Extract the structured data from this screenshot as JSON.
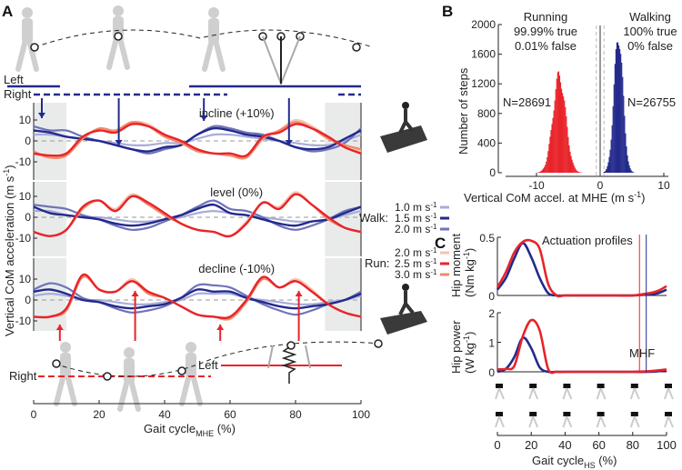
{
  "panels": {
    "a": "A",
    "b": "B",
    "c": "C"
  },
  "colors": {
    "walk": [
      "#a9acd8",
      "#232a8c",
      "#6f73b9"
    ],
    "run": [
      "#f6c3ad",
      "#e8242a",
      "#f08a6c"
    ],
    "stance_shade": "#e9ebea"
  },
  "panel_a": {
    "top_left_label": "Left",
    "top_right_label": "Right",
    "bottom_left_label": "Left",
    "bottom_right_label": "Right",
    "ylabel": "Vertical CoM acceleration (m s",
    "ylabel_sup": "-1",
    "ylabel_end": ")",
    "xlabel": "Gait cycle",
    "xlabel_sub": "MHE",
    "xlabel_end": " (%)",
    "xticks": [
      "0",
      "20",
      "40",
      "60",
      "80",
      "100"
    ],
    "yticks": [
      "10",
      "0",
      "-10"
    ],
    "legend": {
      "walk_label": "Walk:",
      "run_label": "Run:",
      "walk_speeds": [
        "1.0 m s",
        "1.5 m s",
        "2.0 m s"
      ],
      "run_speeds": [
        "2.0 m s",
        "2.5 m s",
        "3.0 m s"
      ],
      "unit_sup": "-1"
    }
  },
  "chart_data": [
    {
      "type": "line",
      "panel": "A",
      "x": [
        0,
        5,
        10,
        15,
        20,
        25,
        30,
        35,
        40,
        45,
        50,
        55,
        60,
        65,
        70,
        75,
        80,
        85,
        90,
        95,
        100
      ],
      "ylim": [
        -15,
        15
      ],
      "xlim": [
        0,
        100
      ],
      "subplots": [
        {
          "title": "incline (+10%)",
          "walk": [
            [
              3,
              3,
              2,
              1,
              0,
              -1,
              -2,
              -2,
              -1,
              -1,
              1,
              3,
              3,
              2,
              1,
              0,
              -1,
              -2,
              -2,
              0,
              3
            ],
            [
              5,
              4,
              2,
              1,
              0,
              -2,
              -4,
              -5,
              -3,
              -2,
              3,
              6,
              5,
              3,
              2,
              0,
              -3,
              -4,
              -3,
              1,
              5
            ],
            [
              7,
              5,
              5,
              2,
              0,
              -2,
              -4,
              -6,
              -4,
              -2,
              3,
              7,
              6,
              4,
              3,
              0,
              -3,
              -5,
              -4,
              -1,
              6
            ]
          ],
          "run": [
            [
              -6,
              -8,
              -6,
              2,
              5,
              5,
              9,
              8,
              3,
              -1,
              -4,
              -6,
              -6,
              -7,
              2,
              5,
              10,
              7,
              2,
              -3,
              -5
            ],
            [
              -6,
              -7,
              -6,
              2,
              5,
              4,
              8,
              7,
              3,
              0,
              -4,
              -6,
              -6,
              -7,
              2,
              4,
              8,
              6,
              2,
              -3,
              -6
            ],
            [
              -5,
              -8,
              -7,
              1,
              6,
              5,
              9,
              7,
              2,
              -1,
              -5,
              -6,
              -7,
              -8,
              1,
              5,
              9,
              6,
              1,
              -2,
              -4
            ]
          ]
        },
        {
          "title": "level (0%)",
          "walk": [
            [
              3,
              3,
              1,
              0,
              0,
              -1,
              -2,
              -2,
              -1,
              0,
              2,
              3,
              2,
              1,
              0,
              -1,
              -2,
              -2,
              -1,
              1,
              3
            ],
            [
              5,
              2,
              1,
              0,
              -1,
              -3,
              -4,
              -3,
              -1,
              1,
              4,
              6,
              2,
              1,
              -1,
              -3,
              -4,
              -2,
              -1,
              2,
              5
            ],
            [
              6,
              5,
              4,
              1,
              -1,
              -4,
              -6,
              -5,
              -2,
              1,
              5,
              8,
              4,
              3,
              0,
              -4,
              -6,
              -4,
              -1,
              3,
              5
            ]
          ],
          "run": [
            [
              -7,
              -9,
              -6,
              5,
              8,
              4,
              11,
              7,
              2,
              -3,
              -6,
              -7,
              -9,
              -2,
              7,
              5,
              12,
              6,
              0,
              -5,
              -7
            ],
            [
              -7,
              -9,
              -6,
              5,
              8,
              3,
              10,
              7,
              2,
              -3,
              -6,
              -7,
              -9,
              -3,
              7,
              4,
              11,
              6,
              0,
              -5,
              -7
            ],
            [
              -7,
              -9,
              -6,
              4,
              8,
              3,
              10,
              6,
              1,
              -3,
              -6,
              -7,
              -9,
              -3,
              7,
              4,
              11,
              6,
              -1,
              -5,
              -7
            ]
          ]
        },
        {
          "title": "decline (-10%)",
          "walk": [
            [
              2,
              3,
              2,
              0,
              0,
              -1,
              -2,
              -2,
              -1,
              0,
              3,
              3,
              3,
              1,
              0,
              -1,
              -2,
              -2,
              -1,
              0,
              2
            ],
            [
              4,
              5,
              3,
              0,
              -1,
              -3,
              -4,
              -3,
              -2,
              1,
              5,
              4,
              4,
              1,
              -1,
              -3,
              -4,
              -3,
              -2,
              0,
              3
            ],
            [
              5,
              8,
              6,
              1,
              -1,
              -4,
              -6,
              -5,
              -3,
              1,
              7,
              7,
              6,
              2,
              -2,
              -5,
              -7,
              -5,
              -2,
              0,
              4
            ]
          ],
          "run": [
            [
              -8,
              -8,
              -4,
              12,
              5,
              4,
              10,
              4,
              1,
              -3,
              -7,
              -8,
              -8,
              0,
              11,
              6,
              10,
              5,
              -2,
              -6,
              -8
            ],
            [
              -8,
              -8,
              -4,
              12,
              5,
              4,
              9,
              4,
              1,
              -3,
              -7,
              -8,
              -8,
              0,
              11,
              6,
              9,
              4,
              -2,
              -6,
              -8
            ],
            [
              -8,
              -8,
              -5,
              11,
              5,
              4,
              9,
              3,
              1,
              -3,
              -7,
              -8,
              -9,
              -1,
              10,
              6,
              9,
              4,
              -2,
              -6,
              -8
            ]
          ]
        }
      ]
    },
    {
      "type": "histogram",
      "panel": "B",
      "xlabel": "Vertical CoM accel. at MHE (m s",
      "xlabel_sup": "-1",
      "xlabel_end": ")",
      "ylabel": "Number of steps",
      "xlim": [
        -15,
        11
      ],
      "ylim": [
        0,
        2000
      ],
      "xticks": [
        "-10",
        "0",
        "10"
      ],
      "yticks": [
        "0",
        "400",
        "800",
        "1200",
        "1600",
        "2000"
      ],
      "series": [
        {
          "name": "Running",
          "line1": "99.99% true",
          "line2": "0.01% false",
          "n_label": "N=28691",
          "center": -6.5,
          "peak": 1400,
          "sd": 1.0
        },
        {
          "name": "Walking",
          "line1": "100% true",
          "line2": "0% false",
          "n_label": "N=26755",
          "center": 2.8,
          "peak": 2000,
          "sd": 0.7
        }
      ]
    },
    {
      "type": "line",
      "panel": "C",
      "annotation": "Actuation profiles",
      "marker_label": "MHF",
      "marker_x": {
        "run": 84,
        "walk": 88
      },
      "xlabel": "Gait cycle",
      "xlabel_sub": "HS",
      "xlabel_end": " (%)",
      "xticks": [
        "0",
        "20",
        "40",
        "60",
        "80",
        "100"
      ],
      "x": [
        0,
        5,
        10,
        15,
        20,
        25,
        30,
        35,
        40,
        50,
        60,
        70,
        80,
        90,
        95,
        100
      ],
      "subplots": [
        {
          "ylabel1": "Hip moment",
          "ylabel2": "(Nm kg",
          "ylabel_sup": "-1",
          "ylabel_end": ")",
          "ylim": [
            0,
            0.5
          ],
          "yticks": [
            "0",
            "0.5"
          ],
          "walk": [
            0.05,
            0.15,
            0.32,
            0.45,
            0.33,
            0.15,
            0.02,
            0,
            0,
            0,
            0,
            0,
            0,
            0.01,
            0.02,
            0.05
          ],
          "run": [
            0.07,
            0.2,
            0.37,
            0.46,
            0.47,
            0.4,
            0.1,
            0,
            0,
            0,
            0,
            0,
            0,
            0.02,
            0.04,
            0.08
          ]
        },
        {
          "ylabel1": "Hip power",
          "ylabel2": "(W kg",
          "ylabel_sup": "-1",
          "ylabel_end": ")",
          "ylim": [
            0,
            2
          ],
          "yticks": [
            "0",
            "1",
            "2"
          ],
          "walk": [
            0,
            0.1,
            0.5,
            1.15,
            0.8,
            0.15,
            0,
            0,
            0,
            0,
            0,
            0,
            0,
            0,
            0.02,
            0.05
          ],
          "run": [
            0.08,
            0.1,
            0.2,
            1.2,
            1.75,
            1.4,
            0.1,
            0,
            0,
            0,
            0,
            0,
            0,
            0.02,
            0.05,
            0.08
          ]
        }
      ]
    }
  ]
}
